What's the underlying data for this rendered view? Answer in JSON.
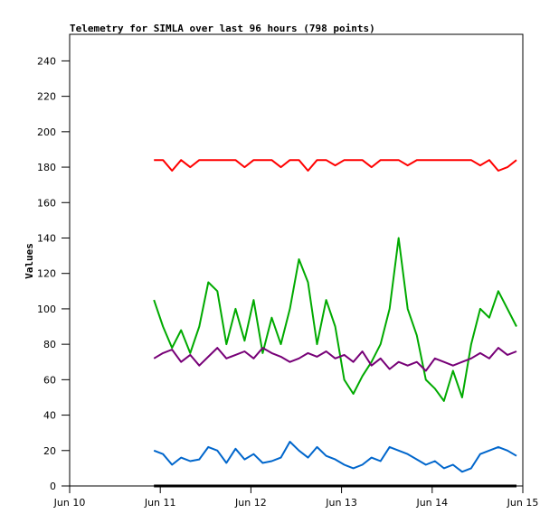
{
  "chart_data": {
    "type": "line",
    "title": "Telemetry for SIMLA over last 96 hours (798 points)",
    "xlabel": "",
    "ylabel": "Values",
    "xlim": [
      10,
      15
    ],
    "ylim": [
      0,
      255
    ],
    "xticks": [
      {
        "value": 10,
        "label": "Jun 10"
      },
      {
        "value": 11,
        "label": "Jun 11"
      },
      {
        "value": 12,
        "label": "Jun 12"
      },
      {
        "value": 13,
        "label": "Jun 13"
      },
      {
        "value": 14,
        "label": "Jun 14"
      },
      {
        "value": 15,
        "label": "Jun 15"
      }
    ],
    "yticks": [
      0,
      20,
      40,
      60,
      80,
      100,
      120,
      140,
      160,
      180,
      200,
      220,
      240
    ],
    "grid": false,
    "x_start": 10.93,
    "x_step": 0.1,
    "series": [
      {
        "name": "red",
        "color": "#ff0000",
        "values": [
          184,
          184,
          178,
          184,
          180,
          184,
          184,
          184,
          184,
          184,
          180,
          184,
          184,
          184,
          180,
          184,
          184,
          178,
          184,
          184,
          181,
          184,
          184,
          184,
          180,
          184,
          184,
          184,
          181,
          184,
          184,
          184,
          184,
          184,
          184,
          184,
          181,
          184,
          178,
          180,
          184
        ]
      },
      {
        "name": "green",
        "color": "#00aa00",
        "values": [
          105,
          90,
          78,
          88,
          75,
          90,
          115,
          110,
          80,
          100,
          82,
          105,
          75,
          95,
          80,
          100,
          128,
          115,
          80,
          105,
          90,
          60,
          52,
          62,
          70,
          80,
          100,
          140,
          100,
          85,
          60,
          55,
          48,
          65,
          50,
          80,
          100,
          95,
          110,
          100,
          90
        ]
      },
      {
        "name": "purple",
        "color": "#770077",
        "values": [
          72,
          75,
          77,
          70,
          74,
          68,
          73,
          78,
          72,
          74,
          76,
          72,
          78,
          75,
          73,
          70,
          72,
          75,
          73,
          76,
          72,
          74,
          70,
          76,
          68,
          72,
          66,
          70,
          68,
          70,
          65,
          72,
          70,
          68,
          70,
          72,
          75,
          72,
          78,
          74,
          76
        ]
      },
      {
        "name": "blue",
        "color": "#0066cc",
        "values": [
          20,
          18,
          12,
          16,
          14,
          15,
          22,
          20,
          13,
          21,
          15,
          18,
          13,
          14,
          16,
          25,
          20,
          16,
          22,
          17,
          15,
          12,
          10,
          12,
          16,
          14,
          22,
          20,
          18,
          15,
          12,
          14,
          10,
          12,
          8,
          10,
          18,
          20,
          22,
          20,
          17
        ]
      },
      {
        "name": "black",
        "color": "#000000",
        "values": [
          0,
          0,
          0,
          0,
          0,
          0,
          0,
          0,
          0,
          0,
          0,
          0,
          0,
          0,
          0,
          0,
          0,
          0,
          0,
          0,
          0,
          0,
          0,
          0,
          0,
          0,
          0,
          0,
          0,
          0,
          0,
          0,
          0,
          0,
          0,
          0,
          0,
          0,
          0,
          0,
          0
        ]
      }
    ]
  }
}
